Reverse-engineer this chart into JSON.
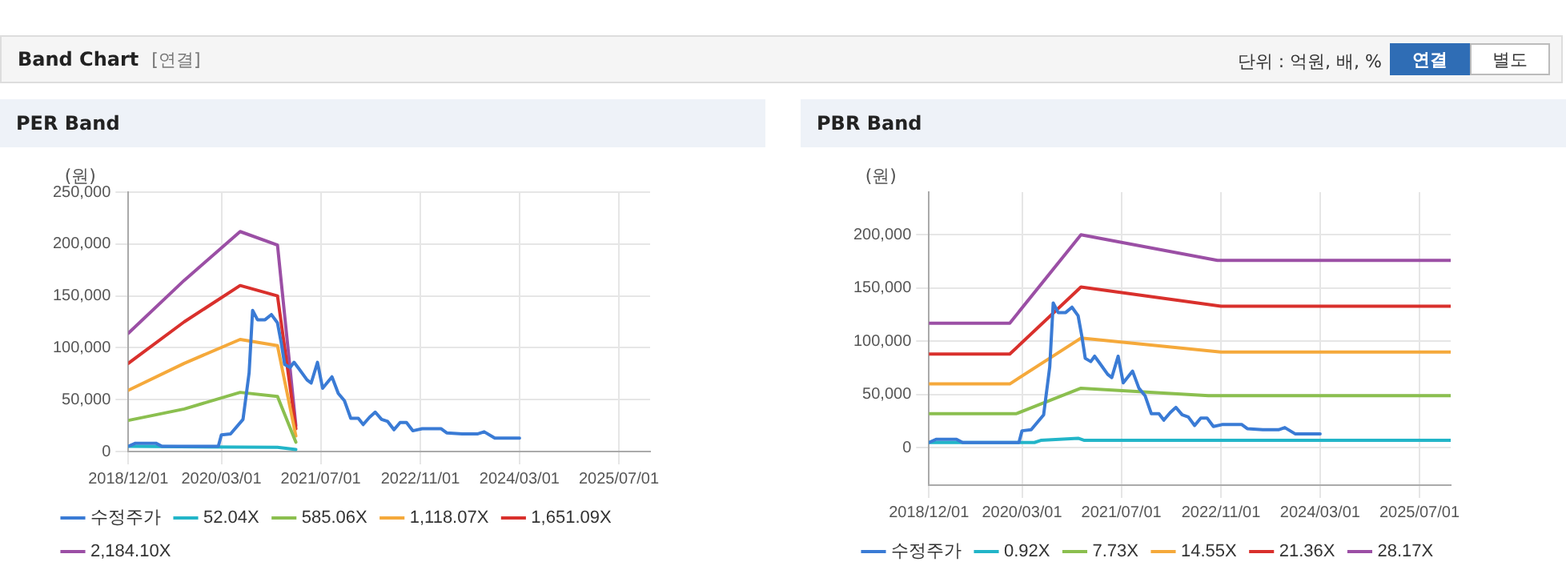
{
  "chart_data": [
    {
      "type": "other",
      "title": "Band Chart",
      "annotations": [
        "[연결]",
        "단위 : 억원, 배, %",
        "연결",
        "별도"
      ]
    },
    {
      "type": "line",
      "title": "PER Band",
      "ylabel": "(원)",
      "xlim": [
        "2018-12-01",
        "2025-12-01"
      ],
      "xticks": [
        {
          "value": "2018-12-01",
          "label": "2018/12/01"
        },
        {
          "value": "2020-03-01",
          "label": "2020/03/01"
        },
        {
          "value": "2021-07-01",
          "label": "2021/07/01"
        },
        {
          "value": "2022-11-01",
          "label": "2022/11/01"
        },
        {
          "value": "2024-03-01",
          "label": "2024/03/01"
        },
        {
          "value": "2025-07-01",
          "label": "2025/07/01"
        }
      ],
      "ylim": [
        0,
        250000
      ],
      "yticks": [
        0,
        {
          "value": 50000,
          "label": "50,000"
        },
        {
          "value": 100000,
          "label": "100,000"
        },
        {
          "value": 150000,
          "label": "150,000"
        },
        {
          "value": 200000,
          "label": "200,000"
        },
        {
          "value": 250000,
          "label": "250,000"
        }
      ],
      "grid": true,
      "legend": "bottom",
      "marker": "none",
      "line_style": "solid",
      "series": [
        {
          "name": "수정주가",
          "color": "#3a7bd5",
          "x": [
            "2018-12-01",
            "2019-01-05",
            "2019-04-15",
            "2019-05-15",
            "2020-02-15",
            "2020-03-01",
            "2020-04-15",
            "2020-06-15",
            "2020-07-15",
            "2020-08-01",
            "2020-08-25",
            "2020-10-01",
            "2020-11-01",
            "2020-12-01",
            "2020-12-20",
            "2021-01-05",
            "2021-02-01",
            "2021-02-20",
            "2021-03-15",
            "2021-04-25",
            "2021-05-15",
            "2021-06-15",
            "2021-07-10",
            "2021-08-25",
            "2021-09-25",
            "2021-10-25",
            "2021-11-25",
            "2022-01-01",
            "2022-01-25",
            "2022-02-25",
            "2022-03-25",
            "2022-04-25",
            "2022-05-25",
            "2022-06-25",
            "2022-07-25",
            "2022-08-25",
            "2022-09-25",
            "2022-11-10",
            "2023-02-10",
            "2023-03-10",
            "2023-05-25",
            "2023-08-10",
            "2023-09-10",
            "2023-11-01",
            "2024-03-01"
          ],
          "values": [
            5000,
            8000,
            8000,
            5000,
            5000,
            16000,
            17000,
            31000,
            76000,
            136000,
            127000,
            127000,
            132000,
            124000,
            104000,
            84000,
            81000,
            86000,
            80000,
            69000,
            66000,
            86000,
            61000,
            72000,
            56000,
            49000,
            32000,
            32000,
            26000,
            33000,
            38000,
            31000,
            29000,
            21000,
            28000,
            28000,
            20000,
            22000,
            22000,
            18000,
            17000,
            17000,
            19000,
            13000,
            13000
          ]
        },
        {
          "name": "52.04X",
          "color": "#22b5c8",
          "x": [
            "2018-12-01",
            "2020-12-01",
            "2021-03-01"
          ],
          "values": [
            5000,
            4000,
            2000
          ]
        },
        {
          "name": "585.06X",
          "color": "#8bbf4f",
          "x": [
            "2018-12-01",
            "2019-09-01",
            "2020-06-01",
            "2020-12-01",
            "2021-03-01"
          ],
          "values": [
            30000,
            41000,
            57000,
            53000,
            9000
          ]
        },
        {
          "name": "1,118.07X",
          "color": "#f5a93b",
          "x": [
            "2018-12-01",
            "2019-09-01",
            "2020-06-01",
            "2020-12-01",
            "2021-03-01"
          ],
          "values": [
            59000,
            85000,
            108000,
            102000,
            15000
          ]
        },
        {
          "name": "1,651.09X",
          "color": "#d9302c",
          "x": [
            "2018-12-01",
            "2019-09-01",
            "2020-06-01",
            "2020-12-01",
            "2021-03-01"
          ],
          "values": [
            85000,
            125000,
            160000,
            150000,
            22000
          ]
        },
        {
          "name": "2,184.10X",
          "color": "#9b4fa5",
          "x": [
            "2018-12-01",
            "2019-09-01",
            "2020-06-01",
            "2020-12-01",
            "2021-03-01"
          ],
          "values": [
            114000,
            165000,
            212000,
            199000,
            25000
          ]
        }
      ]
    },
    {
      "type": "line",
      "title": "PBR Band",
      "ylabel": "(원)",
      "xlim": [
        "2018-12-01",
        "2025-12-01"
      ],
      "xticks": [
        {
          "value": "2018-12-01",
          "label": "2018/12/01"
        },
        {
          "value": "2020-03-01",
          "label": "2020/03/01"
        },
        {
          "value": "2021-07-01",
          "label": "2021/07/01"
        },
        {
          "value": "2022-11-01",
          "label": "2022/11/01"
        },
        {
          "value": "2024-03-01",
          "label": "2024/03/01"
        },
        {
          "value": "2025-07-01",
          "label": "2025/07/01"
        }
      ],
      "ylim": [
        -35000,
        240000
      ],
      "yticks": [
        0,
        {
          "value": 50000,
          "label": "50,000"
        },
        {
          "value": 100000,
          "label": "100,000"
        },
        {
          "value": 150000,
          "label": "150,000"
        },
        {
          "value": 200000,
          "label": "200,000"
        }
      ],
      "grid": true,
      "legend": "bottom",
      "marker": "none",
      "line_style": "solid",
      "series": [
        {
          "name": "수정주가",
          "color": "#3a7bd5",
          "x": [
            "2018-12-01",
            "2019-01-05",
            "2019-04-15",
            "2019-05-15",
            "2020-02-15",
            "2020-03-01",
            "2020-04-15",
            "2020-06-15",
            "2020-07-15",
            "2020-08-01",
            "2020-08-25",
            "2020-10-01",
            "2020-11-01",
            "2020-12-01",
            "2020-12-20",
            "2021-01-05",
            "2021-02-01",
            "2021-02-20",
            "2021-03-15",
            "2021-04-25",
            "2021-05-15",
            "2021-06-15",
            "2021-07-10",
            "2021-08-25",
            "2021-09-25",
            "2021-10-25",
            "2021-11-25",
            "2022-01-01",
            "2022-01-25",
            "2022-02-25",
            "2022-03-25",
            "2022-04-25",
            "2022-05-25",
            "2022-06-25",
            "2022-07-25",
            "2022-08-25",
            "2022-09-25",
            "2022-11-10",
            "2023-02-10",
            "2023-03-10",
            "2023-05-25",
            "2023-08-10",
            "2023-09-10",
            "2023-11-01",
            "2024-03-01"
          ],
          "values": [
            5000,
            8000,
            8000,
            5000,
            5000,
            16000,
            17000,
            31000,
            76000,
            136000,
            127000,
            127000,
            132000,
            124000,
            104000,
            84000,
            81000,
            86000,
            80000,
            69000,
            66000,
            86000,
            61000,
            72000,
            56000,
            49000,
            32000,
            32000,
            26000,
            33000,
            38000,
            31000,
            29000,
            21000,
            28000,
            28000,
            20000,
            22000,
            22000,
            18000,
            17000,
            17000,
            19000,
            13000,
            13000
          ]
        },
        {
          "name": "0.92X",
          "color": "#22b5c8",
          "x": [
            "2018-12-01",
            "2020-05-01",
            "2020-06-01",
            "2020-12-01",
            "2021-01-01",
            "2025-12-01"
          ],
          "values": [
            5000,
            5000,
            7000,
            9000,
            7000,
            7000
          ]
        },
        {
          "name": "7.73X",
          "color": "#8bbf4f",
          "x": [
            "2018-12-01",
            "2020-02-01",
            "2020-12-15",
            "2022-09-01",
            "2025-12-01"
          ],
          "values": [
            32000,
            32000,
            56000,
            49000,
            49000
          ]
        },
        {
          "name": "14.55X",
          "color": "#f5a93b",
          "x": [
            "2018-12-01",
            "2020-01-01",
            "2020-12-15",
            "2022-11-01",
            "2025-12-01"
          ],
          "values": [
            60000,
            60000,
            103000,
            90000,
            90000
          ]
        },
        {
          "name": "21.36X",
          "color": "#d9302c",
          "x": [
            "2018-12-01",
            "2020-01-01",
            "2020-12-15",
            "2022-11-01",
            "2025-12-01"
          ],
          "values": [
            88000,
            88000,
            151000,
            133000,
            133000
          ]
        },
        {
          "name": "28.17X",
          "color": "#9b4fa5",
          "x": [
            "2018-12-01",
            "2020-01-01",
            "2020-12-15",
            "2022-10-15",
            "2025-12-01"
          ],
          "values": [
            117000,
            117000,
            200000,
            176000,
            176000
          ]
        }
      ]
    }
  ]
}
